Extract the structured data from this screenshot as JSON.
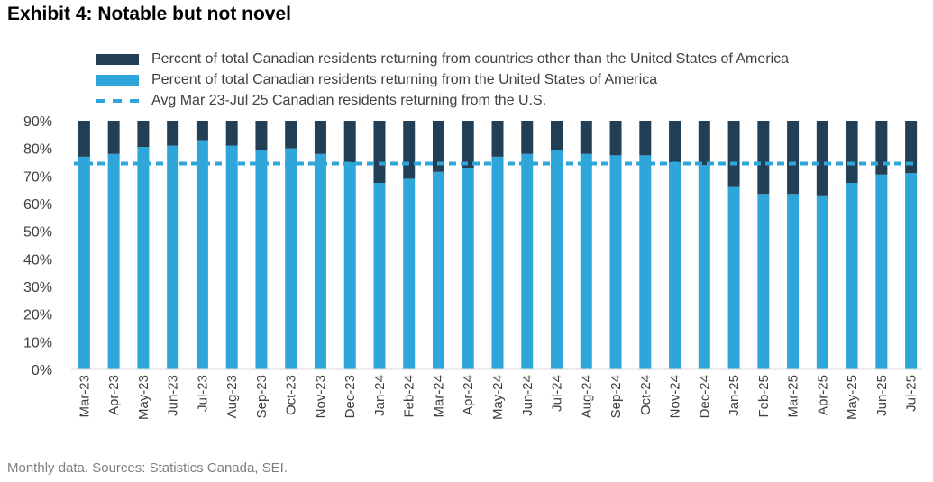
{
  "title": "Exhibit 4: Notable but not novel",
  "footnote": "Monthly data. Sources: Statistics Canada, SEI.",
  "colors": {
    "other_countries": "#233f56",
    "united_states": "#2ea6da",
    "average_line": "#2ea6da"
  },
  "legend": [
    {
      "key": "other_countries",
      "label": "Percent of total Canadian residents returning from countries other than the United States of America"
    },
    {
      "key": "united_states",
      "label": "Percent of total Canadian residents returning from the United States of America"
    },
    {
      "key": "average_line",
      "label": "Avg Mar 23-Jul 25 Canadian residents returning from the U.S."
    }
  ],
  "chart_data": {
    "type": "bar",
    "stacked": true,
    "title": "Exhibit 4: Notable but not novel",
    "xlabel": "",
    "ylabel": "",
    "ylim": [
      0,
      90
    ],
    "yticks": [
      "0%",
      "10%",
      "20%",
      "30%",
      "40%",
      "50%",
      "60%",
      "70%",
      "80%",
      "90%"
    ],
    "categories": [
      "Mar-23",
      "Apr-23",
      "May-23",
      "Jun-23",
      "Jul-23",
      "Aug-23",
      "Sep-23",
      "Oct-23",
      "Nov-23",
      "Dec-23",
      "Jan-24",
      "Feb-24",
      "Mar-24",
      "Apr-24",
      "May-24",
      "Jun-24",
      "Jul-24",
      "Aug-24",
      "Sep-24",
      "Oct-24",
      "Nov-24",
      "Dec-24",
      "Jan-25",
      "Feb-25",
      "Mar-25",
      "Apr-25",
      "May-25",
      "Jun-25",
      "Jul-25"
    ],
    "series": [
      {
        "name": "Percent of total Canadian residents returning from the United States of America",
        "values": [
          77,
          78,
          80.5,
          81,
          83,
          81,
          79.5,
          80,
          78,
          75,
          67.5,
          69,
          71.5,
          73,
          77,
          78,
          79.5,
          78,
          77.5,
          77.5,
          75,
          74,
          66,
          63.5,
          63.5,
          63,
          67.5,
          70.5,
          71
        ]
      },
      {
        "name": "Percent of total Canadian residents returning from countries other than the United States of America",
        "values": [
          13,
          12,
          9.5,
          9,
          7,
          9,
          10.5,
          10,
          12,
          15,
          22.5,
          21,
          18.5,
          17,
          13,
          12,
          10.5,
          12,
          12.5,
          12.5,
          15,
          16,
          24,
          26.5,
          26.5,
          27,
          22.5,
          19.5,
          19
        ]
      }
    ],
    "average_line": {
      "name": "Avg Mar 23-Jul 25 Canadian residents returning from the U.S.",
      "value": 74.5
    }
  }
}
